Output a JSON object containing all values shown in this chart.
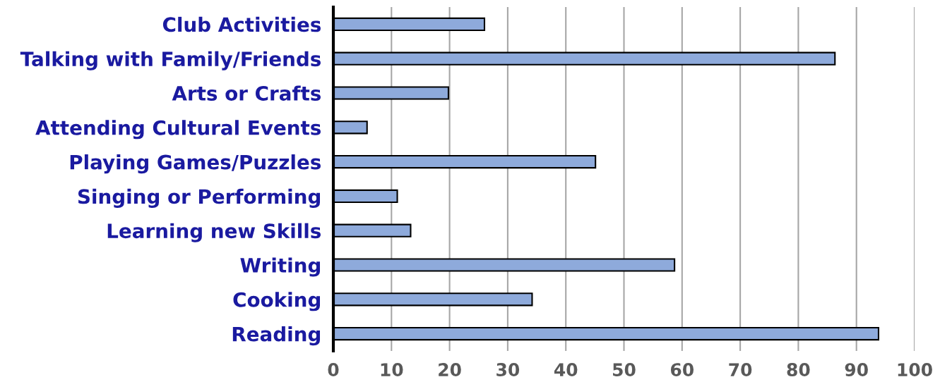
{
  "chart_data": {
    "type": "bar",
    "orientation": "horizontal",
    "categories": [
      "Club Activities",
      "Talking with Family/Friends",
      "Arts or Crafts",
      "Attending Cultural Events",
      "Playing Games/Puzzles",
      "Singing or Performing",
      "Learning new Skills",
      "Writing",
      "Cooking",
      "Reading"
    ],
    "values": [
      26.0,
      86.3,
      19.8,
      5.8,
      45.1,
      11.0,
      13.3,
      58.7,
      34.2,
      93.8
    ],
    "color": "#8eaadb",
    "xlim": [
      0,
      100
    ],
    "xticks": [
      0,
      10,
      20,
      30,
      40,
      50,
      60,
      70,
      80,
      90,
      100
    ],
    "grid": "x"
  }
}
